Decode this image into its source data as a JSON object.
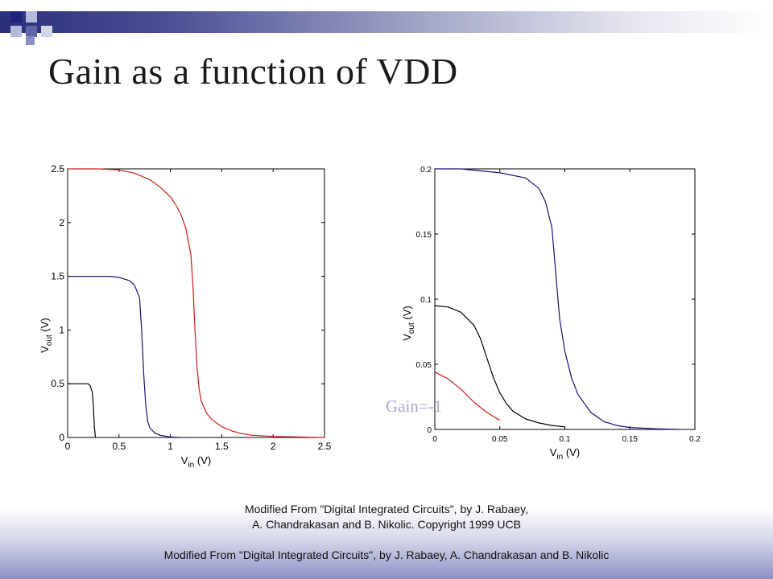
{
  "slide": {
    "title": "Gain as a function of VDD",
    "annotation": "Gain=-1",
    "footnote": "Modified From \"Digital Integrated Circuits\", by J. Rabaey, A. Chandrakasan and B. Nikolic. Copyright 1999 UCB",
    "footer": "Modified From \"Digital Integrated Circuits\", by J. Rabaey, A. Chandrakasan and B. Nikolic"
  },
  "colors": {
    "red": "#cc1b1b",
    "blue": "#14147a",
    "black": "#000000",
    "band_dark": "#2a2f7c",
    "square_light": "#b4b8dc"
  },
  "chart_data": [
    {
      "type": "line",
      "xlabel": "V_in (V)",
      "ylabel": "V_out (V)",
      "xlim": [
        0,
        2.5
      ],
      "ylim": [
        0,
        2.5
      ],
      "xticks": [
        "0",
        "0.5",
        "1",
        "1.5",
        "2",
        "2.5"
      ],
      "yticks": [
        "0",
        "0.5",
        "1",
        "1.5",
        "2",
        "2.5"
      ],
      "series": [
        {
          "color": "red",
          "x": [
            0,
            0.3,
            0.5,
            0.65,
            0.8,
            0.9,
            1.0,
            1.05,
            1.1,
            1.15,
            1.2,
            1.22,
            1.24,
            1.26,
            1.28,
            1.3,
            1.35,
            1.4,
            1.5,
            1.6,
            1.7,
            1.8,
            2.0,
            2.5
          ],
          "y": [
            2.5,
            2.5,
            2.49,
            2.46,
            2.4,
            2.33,
            2.24,
            2.17,
            2.08,
            1.95,
            1.7,
            1.4,
            1.0,
            0.65,
            0.45,
            0.34,
            0.23,
            0.17,
            0.1,
            0.06,
            0.035,
            0.02,
            0.01,
            0.0
          ]
        },
        {
          "color": "blue",
          "x": [
            0,
            0.4,
            0.5,
            0.6,
            0.65,
            0.7,
            0.72,
            0.74,
            0.76,
            0.78,
            0.8,
            0.85,
            0.9,
            1.0,
            1.1
          ],
          "y": [
            1.5,
            1.5,
            1.49,
            1.46,
            1.42,
            1.3,
            1.0,
            0.6,
            0.3,
            0.15,
            0.09,
            0.04,
            0.02,
            0.005,
            0.0
          ]
        },
        {
          "color": "black",
          "x": [
            0,
            0.2,
            0.22,
            0.24,
            0.25,
            0.26,
            0.27
          ],
          "y": [
            0.5,
            0.5,
            0.48,
            0.42,
            0.3,
            0.1,
            0.0
          ]
        }
      ]
    },
    {
      "type": "line",
      "xlabel": "V_in (V)",
      "ylabel": "V_out (V)",
      "xlim": [
        0,
        0.2
      ],
      "ylim": [
        0,
        0.2
      ],
      "xticks": [
        "0",
        "0.05",
        "0.1",
        "0.15",
        "0.2"
      ],
      "yticks": [
        "0",
        "0.05",
        "0.1",
        "0.15",
        "0.2"
      ],
      "series": [
        {
          "color": "blue",
          "x": [
            0,
            0.02,
            0.05,
            0.07,
            0.08,
            0.085,
            0.09,
            0.093,
            0.096,
            0.1,
            0.105,
            0.11,
            0.12,
            0.13,
            0.14,
            0.15,
            0.17,
            0.19
          ],
          "y": [
            0.2,
            0.2,
            0.197,
            0.193,
            0.185,
            0.175,
            0.155,
            0.12,
            0.085,
            0.06,
            0.04,
            0.027,
            0.013,
            0.006,
            0.003,
            0.0015,
            0.0005,
            0.0
          ]
        },
        {
          "color": "black",
          "x": [
            0,
            0.01,
            0.02,
            0.03,
            0.035,
            0.04,
            0.045,
            0.05,
            0.055,
            0.06,
            0.07,
            0.08,
            0.09,
            0.1
          ],
          "y": [
            0.095,
            0.094,
            0.09,
            0.08,
            0.07,
            0.055,
            0.04,
            0.028,
            0.02,
            0.014,
            0.008,
            0.005,
            0.003,
            0.002
          ]
        },
        {
          "color": "red",
          "x": [
            0,
            0.01,
            0.02,
            0.03,
            0.04,
            0.05
          ],
          "y": [
            0.044,
            0.039,
            0.031,
            0.021,
            0.013,
            0.007
          ]
        }
      ]
    }
  ]
}
